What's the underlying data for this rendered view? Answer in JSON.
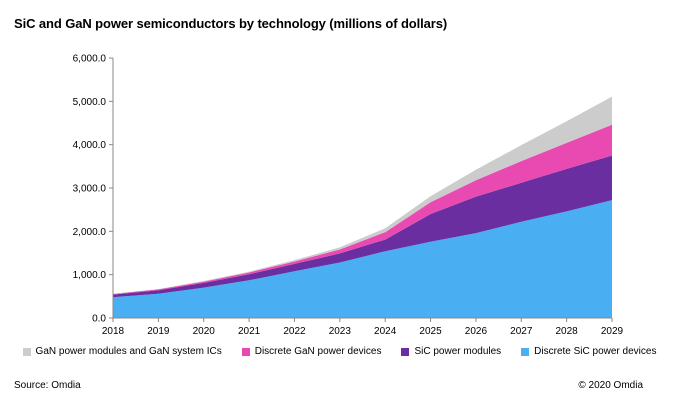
{
  "title": "SiC and GaN power semiconductors by technology (millions of dollars)",
  "source": "Source: Omdia",
  "copyright": "© 2020 Omdia",
  "chart_data": {
    "type": "area",
    "stacked": true,
    "title": "SiC and GaN power semiconductors by technology (millions of dollars)",
    "xlabel": "",
    "ylabel": "",
    "x": [
      "2018",
      "2019",
      "2020",
      "2021",
      "2022",
      "2023",
      "2024",
      "2025",
      "2026",
      "2027",
      "2028",
      "2029"
    ],
    "ylim": [
      0,
      6000
    ],
    "yticks": [
      0,
      1000,
      2000,
      3000,
      4000,
      5000,
      6000
    ],
    "ytick_labels": [
      "0.0",
      "1,000.0",
      "2,000.0",
      "3,000.0",
      "4,000.0",
      "5,000.0",
      "6,000.0"
    ],
    "grid": false,
    "legend_position": "bottom",
    "series": [
      {
        "name": "Discrete SiC power devices",
        "color": "#4aaef3",
        "values": [
          480,
          560,
          700,
          870,
          1080,
          1280,
          1540,
          1760,
          1960,
          2220,
          2460,
          2720
        ]
      },
      {
        "name": "SiC power modules",
        "color": "#6a2ea0",
        "values": [
          60,
          80,
          110,
          140,
          170,
          210,
          270,
          640,
          840,
          900,
          980,
          1030
        ]
      },
      {
        "name": "Discrete GaN power devices",
        "color": "#e94ab2",
        "values": [
          15,
          20,
          30,
          40,
          55,
          90,
          170,
          270,
          380,
          500,
          600,
          710
        ]
      },
      {
        "name": "GaN power modules and GaN system ICs",
        "color": "#cccccc",
        "values": [
          5,
          10,
          15,
          20,
          30,
          50,
          90,
          140,
          240,
          370,
          500,
          650
        ]
      }
    ],
    "legend_order": [
      "GaN power modules and GaN system ICs",
      "Discrete GaN power devices",
      "SiC power modules",
      "Discrete SiC power devices"
    ]
  }
}
